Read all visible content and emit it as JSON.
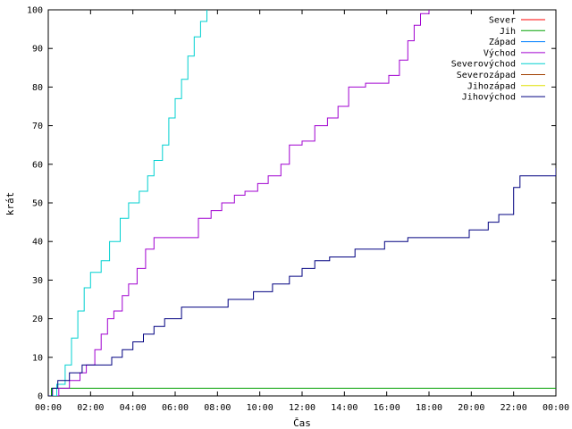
{
  "chart_data": {
    "type": "line",
    "xlabel": "Čas",
    "ylabel": "krát",
    "ylim": [
      0,
      100
    ],
    "xlim": [
      0,
      24
    ],
    "x_unit": "hours",
    "y_ticks": [
      0,
      10,
      20,
      30,
      40,
      50,
      60,
      70,
      80,
      90,
      100
    ],
    "x_ticks": [
      {
        "x": 0,
        "label": "00:00"
      },
      {
        "x": 2,
        "label": "02:00"
      },
      {
        "x": 4,
        "label": "04:00"
      },
      {
        "x": 6,
        "label": "06:00"
      },
      {
        "x": 8,
        "label": "08:00"
      },
      {
        "x": 10,
        "label": "10:00"
      },
      {
        "x": 12,
        "label": "12:00"
      },
      {
        "x": 14,
        "label": "14:00"
      },
      {
        "x": 16,
        "label": "16:00"
      },
      {
        "x": 18,
        "label": "18:00"
      },
      {
        "x": 20,
        "label": "20:00"
      },
      {
        "x": 22,
        "label": "22:00"
      },
      {
        "x": 24,
        "label": "00:00"
      }
    ],
    "grid": false,
    "legend": "top-right",
    "step": true,
    "series": [
      {
        "name": "Sever",
        "color": "#ff0000",
        "points": []
      },
      {
        "name": "Jih",
        "color": "#00a000",
        "points": [
          [
            0.05,
            0
          ],
          [
            0.15,
            2
          ],
          [
            24,
            2
          ]
        ]
      },
      {
        "name": "Západ",
        "color": "#0080ff",
        "points": []
      },
      {
        "name": "Východ",
        "color": "#a000d0",
        "points": [
          [
            0,
            0
          ],
          [
            0.5,
            2
          ],
          [
            1.0,
            4
          ],
          [
            1.5,
            6
          ],
          [
            1.8,
            8
          ],
          [
            2.2,
            12
          ],
          [
            2.5,
            16
          ],
          [
            2.8,
            20
          ],
          [
            3.1,
            22
          ],
          [
            3.5,
            26
          ],
          [
            3.8,
            29
          ],
          [
            4.2,
            33
          ],
          [
            4.6,
            38
          ],
          [
            5.0,
            41
          ],
          [
            6.5,
            41
          ],
          [
            7.1,
            46
          ],
          [
            7.7,
            48
          ],
          [
            8.2,
            50
          ],
          [
            8.8,
            52
          ],
          [
            9.3,
            53
          ],
          [
            9.9,
            55
          ],
          [
            10.4,
            57
          ],
          [
            11.0,
            60
          ],
          [
            11.4,
            65
          ],
          [
            12.0,
            66
          ],
          [
            12.6,
            70
          ],
          [
            13.2,
            72
          ],
          [
            13.7,
            75
          ],
          [
            14.2,
            80
          ],
          [
            15.0,
            81
          ],
          [
            16.1,
            83
          ],
          [
            16.6,
            87
          ],
          [
            17.0,
            92
          ],
          [
            17.3,
            96
          ],
          [
            17.6,
            99
          ],
          [
            18.0,
            100
          ]
        ]
      },
      {
        "name": "Severovýchod",
        "color": "#00d0d0",
        "points": [
          [
            0,
            0
          ],
          [
            0.4,
            3
          ],
          [
            0.8,
            8
          ],
          [
            1.1,
            15
          ],
          [
            1.4,
            22
          ],
          [
            1.7,
            28
          ],
          [
            2.0,
            32
          ],
          [
            2.5,
            35
          ],
          [
            2.9,
            40
          ],
          [
            3.4,
            46
          ],
          [
            3.8,
            50
          ],
          [
            4.3,
            53
          ],
          [
            4.7,
            57
          ],
          [
            5.0,
            61
          ],
          [
            5.4,
            65
          ],
          [
            5.7,
            72
          ],
          [
            6.0,
            77
          ],
          [
            6.3,
            82
          ],
          [
            6.6,
            88
          ],
          [
            6.9,
            93
          ],
          [
            7.2,
            97
          ],
          [
            7.5,
            100
          ]
        ]
      },
      {
        "name": "Severozápad",
        "color": "#a04000",
        "points": []
      },
      {
        "name": "Jihozápad",
        "color": "#e0e000",
        "points": []
      },
      {
        "name": "Jihovýchod",
        "color": "#000080",
        "points": [
          [
            0,
            0
          ],
          [
            0.2,
            2
          ],
          [
            0.45,
            4
          ],
          [
            1.0,
            6
          ],
          [
            1.6,
            8
          ],
          [
            3.0,
            10
          ],
          [
            3.5,
            12
          ],
          [
            4.0,
            14
          ],
          [
            4.5,
            16
          ],
          [
            5.0,
            18
          ],
          [
            5.5,
            20
          ],
          [
            6.3,
            23
          ],
          [
            8.5,
            25
          ],
          [
            9.7,
            27
          ],
          [
            10.6,
            29
          ],
          [
            11.4,
            31
          ],
          [
            12.0,
            33
          ],
          [
            12.6,
            35
          ],
          [
            13.3,
            36
          ],
          [
            14.5,
            38
          ],
          [
            15.9,
            40
          ],
          [
            17.0,
            41
          ],
          [
            19.9,
            43
          ],
          [
            20.8,
            45
          ],
          [
            21.3,
            47
          ],
          [
            22.0,
            54
          ],
          [
            22.3,
            57
          ],
          [
            24.0,
            59
          ]
        ]
      }
    ]
  }
}
